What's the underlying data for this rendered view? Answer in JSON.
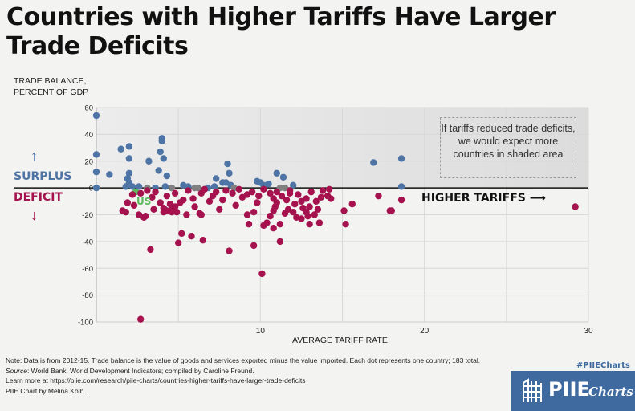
{
  "title": "Countries with Higher Tariffs Have Larger Trade Deficits",
  "y_axis_label_line1": "TRADE BALANCE,",
  "y_axis_label_line2": "PERCENT OF GDP",
  "surplus_label": "SURPLUS",
  "deficit_label": "DEFICIT",
  "arrow_up": "↑",
  "arrow_down": "↓",
  "annotation": "If tariffs reduced trade deficits, we would expect more countries in shaded area",
  "higher_tariffs_label": "HIGHER TARIFFS ⟶",
  "us_label": "US",
  "notes": {
    "note": "Note: Data is from 2012-15. Trade balance is the value of goods and services exported minus the value imported. Each dot represents one country; 183 total.",
    "source_label": "Source",
    "source_text": ": World Bank, World Development Indicators; compiled by Caroline Freund.",
    "learn_more": "Learn more at https://piie.com/research/piie-charts/countries-higher-tariffs-have-larger-trade-deficits",
    "credit": "PIIE Chart by Melina Kolb."
  },
  "hashtag": "#PIIECharts",
  "logo": {
    "name": "PIIE",
    "suffix": "Charts"
  },
  "colors": {
    "surplus": "#4d74a4",
    "deficit": "#a5124d",
    "neutral": "#808080",
    "us": "#5cb85c",
    "logo_bg": "#3f6aa0"
  },
  "chart_data": {
    "type": "scatter",
    "title": "Countries with Higher Tariffs Have Larger Trade Deficits",
    "xlabel": "AVERAGE TARIFF RATE",
    "ylabel": "TRADE BALANCE, PERCENT OF GDP",
    "xlim": [
      0,
      30
    ],
    "ylim": [
      -100,
      60
    ],
    "xticks": [
      10,
      20,
      30
    ],
    "yticks": [
      60,
      40,
      20,
      0,
      -20,
      -40,
      -60,
      -80,
      -100
    ],
    "grid": true,
    "shaded_region": {
      "x": [
        0,
        30
      ],
      "y": [
        0,
        60
      ]
    },
    "series": [
      {
        "name": "surplus",
        "color": "#4d74a4",
        "points": [
          [
            0,
            54
          ],
          [
            0,
            25
          ],
          [
            0,
            12
          ],
          [
            0,
            0
          ],
          [
            0.8,
            10
          ],
          [
            1.5,
            29
          ],
          [
            2,
            31
          ],
          [
            2,
            22
          ],
          [
            2,
            11
          ],
          [
            1.9,
            7
          ],
          [
            2,
            4
          ],
          [
            1.8,
            1
          ],
          [
            2.2,
            1
          ],
          [
            2.6,
            1
          ],
          [
            3.2,
            20
          ],
          [
            4,
            37
          ],
          [
            4,
            35
          ],
          [
            3.9,
            27
          ],
          [
            4.1,
            22
          ],
          [
            3.8,
            13
          ],
          [
            4.3,
            9
          ],
          [
            3.6,
            0
          ],
          [
            4.2,
            1
          ],
          [
            6.8,
            0
          ],
          [
            7.2,
            1
          ],
          [
            7.7,
            4
          ],
          [
            7.3,
            7
          ],
          [
            8.2,
            2
          ],
          [
            7.9,
            4
          ],
          [
            8,
            18
          ],
          [
            8.1,
            11
          ],
          [
            10,
            4
          ],
          [
            10.5,
            3
          ],
          [
            10.2,
            2
          ],
          [
            9.8,
            5
          ],
          [
            11,
            11
          ],
          [
            11.4,
            8
          ],
          [
            12,
            2
          ],
          [
            16.9,
            19
          ],
          [
            18.6,
            22
          ],
          [
            18.6,
            1
          ],
          [
            5.3,
            2
          ],
          [
            5.6,
            1
          ]
        ]
      },
      {
        "name": "neutral",
        "color": "#808080",
        "points": [
          [
            3.1,
            0
          ],
          [
            4.6,
            0
          ],
          [
            6.2,
            0
          ],
          [
            8.4,
            0
          ],
          [
            11.2,
            0
          ],
          [
            11.5,
            0
          ],
          [
            6,
            0
          ]
        ]
      },
      {
        "name": "US",
        "color": "#5cb85c",
        "points": [
          [
            2.4,
            -3
          ]
        ]
      },
      {
        "name": "deficit",
        "color": "#a5124d",
        "points": [
          [
            1.6,
            -17
          ],
          [
            1.8,
            -18
          ],
          [
            2.6,
            -20
          ],
          [
            2.9,
            -22
          ],
          [
            3,
            -21
          ],
          [
            3.3,
            -46
          ],
          [
            2.7,
            -98
          ],
          [
            4.1,
            -18
          ],
          [
            4.3,
            -17
          ],
          [
            4.6,
            -16
          ],
          [
            4.6,
            -18
          ],
          [
            4.9,
            -18
          ],
          [
            5,
            -41
          ],
          [
            5.2,
            -34
          ],
          [
            5.8,
            -36
          ],
          [
            6.3,
            -19
          ],
          [
            6.4,
            -20
          ],
          [
            6.5,
            -39
          ],
          [
            8.1,
            -47
          ],
          [
            9.3,
            -27
          ],
          [
            9.6,
            -43
          ],
          [
            10.2,
            -28
          ],
          [
            10.4,
            -26
          ],
          [
            10.1,
            -64
          ],
          [
            10.8,
            -30
          ],
          [
            11.2,
            -40
          ],
          [
            12.9,
            -21
          ],
          [
            13.3,
            -20
          ],
          [
            12.5,
            -23
          ],
          [
            13,
            -27
          ],
          [
            13.6,
            -26
          ],
          [
            14.1,
            -6
          ],
          [
            14.3,
            -8
          ],
          [
            15.1,
            -17
          ],
          [
            15.2,
            -27
          ],
          [
            15.6,
            -12
          ],
          [
            17.2,
            -6
          ],
          [
            17.9,
            -17
          ],
          [
            18,
            -17
          ],
          [
            18.6,
            -9
          ],
          [
            29.2,
            -14
          ],
          [
            1.9,
            -11
          ],
          [
            2.2,
            -5
          ],
          [
            2.7,
            -4
          ],
          [
            3.1,
            -2
          ],
          [
            3.4,
            -7
          ],
          [
            3.6,
            -3
          ],
          [
            3.9,
            -11
          ],
          [
            4.3,
            -6
          ],
          [
            4.1,
            -15
          ],
          [
            4.5,
            -12
          ],
          [
            4.8,
            -4
          ],
          [
            5.3,
            -9
          ],
          [
            5.1,
            -11
          ],
          [
            5.6,
            -2
          ],
          [
            5.9,
            -8
          ],
          [
            6.4,
            -4
          ],
          [
            6.6,
            -1
          ],
          [
            7.1,
            -6
          ],
          [
            7.3,
            -3
          ],
          [
            7.7,
            -9
          ],
          [
            7.9,
            -2
          ],
          [
            8.3,
            -4
          ],
          [
            8.7,
            -1
          ],
          [
            8.9,
            -7
          ],
          [
            9.2,
            -5
          ],
          [
            9.5,
            -3
          ],
          [
            9.9,
            -6
          ],
          [
            10.2,
            -1
          ],
          [
            10.6,
            -4
          ],
          [
            10.8,
            -8
          ],
          [
            11,
            -3
          ],
          [
            11.3,
            -6
          ],
          [
            11.6,
            -9
          ],
          [
            11.8,
            -2
          ],
          [
            12.1,
            -12
          ],
          [
            12.3,
            -5
          ],
          [
            12.6,
            -15
          ],
          [
            12.8,
            -8
          ],
          [
            13.1,
            -3
          ],
          [
            13.4,
            -10
          ],
          [
            13.7,
            -7
          ],
          [
            12,
            -18
          ],
          [
            12.2,
            -22
          ],
          [
            11.5,
            -19
          ],
          [
            11,
            -11
          ],
          [
            10.8,
            -17
          ],
          [
            10.6,
            -21
          ],
          [
            11.2,
            -27
          ],
          [
            11.8,
            -4
          ],
          [
            12.5,
            -10
          ],
          [
            13,
            -14
          ],
          [
            13.8,
            -2
          ],
          [
            14.2,
            -1
          ],
          [
            9.2,
            -20
          ],
          [
            9.6,
            -18
          ],
          [
            7.5,
            -16
          ],
          [
            5.5,
            -20
          ],
          [
            6,
            -14
          ],
          [
            8.5,
            -13
          ],
          [
            3.5,
            -16
          ],
          [
            2.3,
            -13
          ],
          [
            4.8,
            -14
          ],
          [
            6.9,
            -10
          ],
          [
            9.8,
            -11
          ],
          [
            10.9,
            -14
          ],
          [
            11.7,
            -16
          ],
          [
            12.8,
            -18
          ],
          [
            13.5,
            -16
          ]
        ]
      }
    ]
  }
}
